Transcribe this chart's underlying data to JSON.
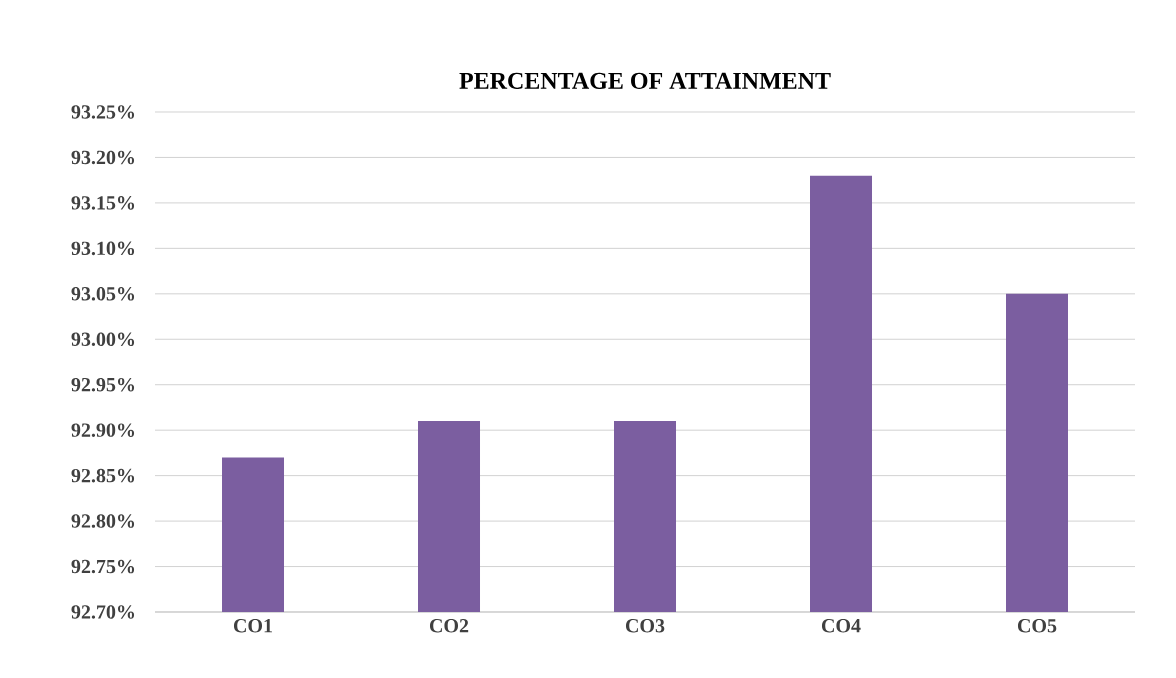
{
  "chart_data": {
    "type": "bar",
    "title": "PERCENTAGE OF ATTAINMENT",
    "categories": [
      "CO1",
      "CO2",
      "CO3",
      "CO4",
      "CO5"
    ],
    "values": [
      92.87,
      92.91,
      92.91,
      93.18,
      93.05
    ],
    "color": "#7b5ea0",
    "ylim": [
      92.7,
      93.25
    ],
    "yticks": [
      {
        "value": 92.7,
        "label": "92.70%"
      },
      {
        "value": 92.75,
        "label": "92.75%"
      },
      {
        "value": 92.8,
        "label": "92.80%"
      },
      {
        "value": 92.85,
        "label": "92.85%"
      },
      {
        "value": 92.9,
        "label": "92.90%"
      },
      {
        "value": 92.95,
        "label": "92.95%"
      },
      {
        "value": 93.0,
        "label": "93.00%"
      },
      {
        "value": 93.05,
        "label": "93.05%"
      },
      {
        "value": 93.1,
        "label": "93.10%"
      },
      {
        "value": 93.15,
        "label": "93.15%"
      },
      {
        "value": 93.2,
        "label": "93.20%"
      },
      {
        "value": 93.25,
        "label": "93.25%"
      }
    ],
    "grid": "y"
  }
}
